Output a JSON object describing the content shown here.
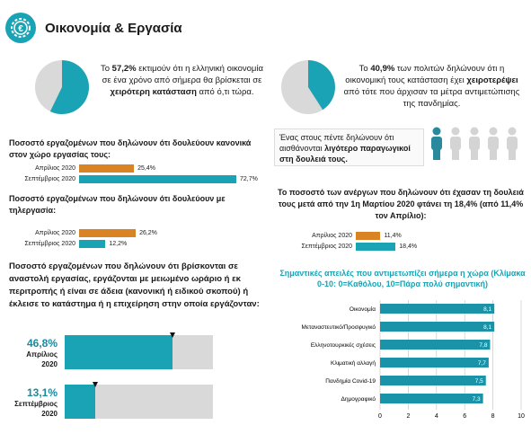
{
  "title": "Οικονομία & Εργασία",
  "stat_left": {
    "pre": "Το ",
    "pct": "57,2%",
    "mid": " εκτιμούν ότι η ελληνική οικονομία σε ένα χρόνο από σήμερα θα βρίσκεται σε ",
    "bold": "χειρότερη κατάσταση",
    "post": " από ό,τι τώρα.",
    "value": 57.2
  },
  "stat_right": {
    "pre": "Το ",
    "pct": "40,9%",
    "mid": " των πολιτών δηλώνουν ότι η οικονομική τους κατάσταση έχει ",
    "bold": "χειροτερέψει",
    "post": " από τότε που άρχισαν τα μέτρα αντιμετώπισης της πανδημίας.",
    "value": 40.9
  },
  "workplace": {
    "heading": "Ποσοστό εργαζομένων που δηλώνουν ότι δουλεύουν κανονικά στον χώρο εργασίας τους:",
    "rows": [
      {
        "label": "Απρίλιος 2020",
        "value": 25.4,
        "text": "25,4%",
        "color": "#d98324"
      },
      {
        "label": "Σεπτέμβριος 2020",
        "value": 72.7,
        "text": "72,7%",
        "color": "#1aa3b4"
      }
    ]
  },
  "telework": {
    "heading": "Ποσοστό εργαζομένων που δηλώνουν ότι δουλεύουν με τηλεργασία:",
    "rows": [
      {
        "label": "Απρίλιος 2020",
        "value": 26.2,
        "text": "26,2%",
        "color": "#d98324"
      },
      {
        "label": "Σεπτέμβριος 2020",
        "value": 12.2,
        "text": "12,2%",
        "color": "#1aa3b4"
      }
    ]
  },
  "suspended": {
    "heading": "Ποσοστό εργαζομένων που δηλώνουν ότι βρίσκονται σε αναστολή εργασίας, εργάζονται με μειωμένο ωράριο ή εκ περιτροπής ή είναι σε άδεια (κανονική ή ειδικού σκοπού) ή έκλεισε το κατάστημα ή η επιχείρηση στην οποία εργάζονταν:",
    "rows": [
      {
        "pct": "46,8%",
        "period": "Απρίλιος",
        "year": "2020",
        "value": 46.8
      },
      {
        "pct": "13,1%",
        "period": "Σεπτέμβριος",
        "year": "2020",
        "value": 13.1
      }
    ]
  },
  "productivity": {
    "pre": "Ένας στους πέντε δηλώνουν ότι αισθάνονται ",
    "bold": "λιγότερο παραγωγικοί στη δουλειά τους.",
    "highlighted": 1,
    "total": 5
  },
  "unemployed": {
    "heading": "Το ποσοστό των ανέργων που δηλώνουν ότι έχασαν τη δουλειά τους μετά από την 1η Μαρτίου 2020 φτάνει τη 18,4% (από 11,4% τον Απρίλιο):",
    "rows": [
      {
        "label": "Απρίλιος 2020",
        "value": 11.4,
        "text": "11,4%",
        "color": "#d98324"
      },
      {
        "label": "Σεπτέμβριος 2020",
        "value": 18.4,
        "text": "18,4%",
        "color": "#1aa3b4"
      }
    ]
  },
  "chart_data": {
    "type": "bar",
    "title": "Σημαντικές απειλές που αντιμετωπίζει σήμερα η χώρα (Κλίμακα 0-10: 0=Καθόλου, 10=Πάρα πολύ σημαντική)",
    "categories": [
      "Οικονομία",
      "Μεταναστευτικό/Προσφυγικό",
      "Ελληνοτουρκικές σχέσεις",
      "Κλιματική αλλαγή",
      "Πανδημία Covid-19",
      "Δημογραφικό"
    ],
    "values": [
      8.1,
      8.1,
      7.8,
      7.7,
      7.5,
      7.3
    ],
    "value_labels": [
      "8,1",
      "8,1",
      "7,8",
      "7,7",
      "7,5",
      "7,3"
    ],
    "xlim": [
      0,
      10
    ],
    "xticks": [
      "0",
      "2",
      "4",
      "6",
      "8",
      "10"
    ],
    "orientation": "horizontal",
    "grid": true
  }
}
